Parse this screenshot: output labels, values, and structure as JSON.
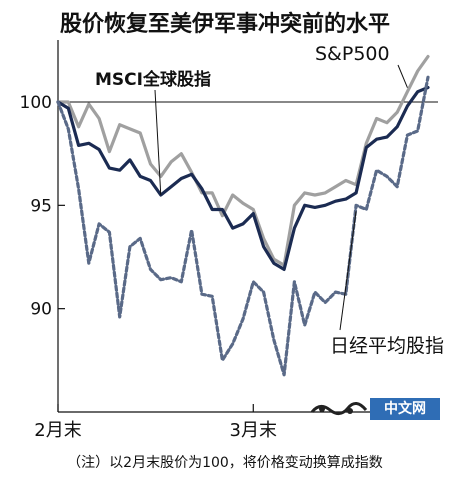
{
  "chart_data": {
    "type": "line",
    "title": "股价恢复至美伊军事冲突前的水平",
    "note": "（注）以2月末股价为100，将价格变动换算成指数",
    "x_tick_labels": [
      {
        "label": "2月末",
        "index": 0
      },
      {
        "label": "3月末",
        "index": 19
      }
    ],
    "ylim": [
      85,
      103
    ],
    "yticks": [
      90,
      95,
      100
    ],
    "reference_line": 100,
    "series": [
      {
        "name": "S&P500",
        "color": "#a0a0a0",
        "dash": "",
        "values": [
          100,
          100,
          98.8,
          99.9,
          99.2,
          97.6,
          98.9,
          98.7,
          98.5,
          97.0,
          96.4,
          97.1,
          97.5,
          96.6,
          95.6,
          95.6,
          94.5,
          95.5,
          95.1,
          94.8,
          93.4,
          92.4,
          92.1,
          95.0,
          95.6,
          95.5,
          95.6,
          95.9,
          96.2,
          96.0,
          98.0,
          99.2,
          99.0,
          99.5,
          100.5,
          101.5,
          102.2
        ]
      },
      {
        "name": "MSCI全球股指",
        "color": "#1b2b52",
        "dash": "",
        "values": [
          100,
          99.7,
          97.9,
          98.0,
          97.7,
          96.8,
          96.7,
          97.2,
          96.4,
          96.2,
          95.5,
          95.9,
          96.3,
          96.5,
          95.8,
          94.8,
          94.8,
          93.9,
          94.1,
          94.6,
          93.0,
          92.2,
          91.9,
          93.9,
          95.0,
          94.9,
          95.0,
          95.2,
          95.3,
          95.6,
          97.8,
          98.2,
          98.3,
          98.8,
          99.8,
          100.5,
          100.7
        ]
      },
      {
        "name": "日经平均股指",
        "color": "#5a6a88",
        "dash": "4,3",
        "values": [
          100,
          98.7,
          95.8,
          92.2,
          94.1,
          93.7,
          89.6,
          93.0,
          93.4,
          91.9,
          91.4,
          91.5,
          91.3,
          93.8,
          90.7,
          90.6,
          87.5,
          88.3,
          89.5,
          91.3,
          90.8,
          88.5,
          86.8,
          91.3,
          89.2,
          90.8,
          90.3,
          90.8,
          90.7,
          95.0,
          94.8,
          96.7,
          96.4,
          95.9,
          98.4,
          98.6,
          101.2
        ]
      }
    ],
    "labels": {
      "sp500": "S&P500",
      "msci": "MSCI全球股指",
      "nikkei": "日经平均股指"
    }
  },
  "watermark": {
    "text": "中文网"
  }
}
